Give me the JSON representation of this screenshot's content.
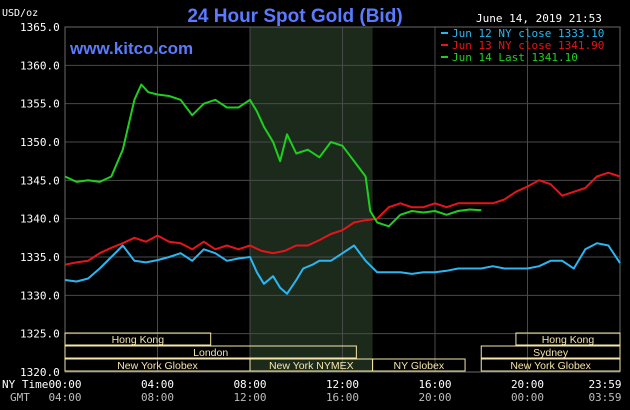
{
  "header": {
    "title": "24 Hour Spot Gold (Bid)",
    "website": "www.kitco.com",
    "date": "June 14, 2019 21:53",
    "unit": "USD/oz"
  },
  "colors": {
    "background": "#000000",
    "grid": "#4a4a4a",
    "highlight_band": "#1c2a1c",
    "title_blue": "#5a7bff",
    "session_box": "#f5e6a8",
    "jun12": "#2cb6f0",
    "jun13": "#e8141b",
    "jun14": "#1fcf1f"
  },
  "chart_data": {
    "type": "line",
    "title": "24 Hour Spot Gold (Bid)",
    "ylabel": "USD/oz",
    "ylim": [
      1320,
      1365
    ],
    "yticks": [
      "1320.0",
      "1325.0",
      "1330.0",
      "1335.0",
      "1340.0",
      "1345.0",
      "1350.0",
      "1355.0",
      "1360.0",
      "1365.0"
    ],
    "xlim": [
      0,
      24
    ],
    "xticks_ny": [
      "00:00",
      "04:00",
      "08:00",
      "12:00",
      "16:00",
      "20:00",
      "23:59"
    ],
    "xticks_gmt": [
      "04:00",
      "08:00",
      "12:00",
      "16:00",
      "20:00",
      "00:00",
      "03:59"
    ],
    "xaxis_label_ny": "NY Time",
    "xaxis_label_gmt": "GMT",
    "highlight_band": [
      8,
      13.3
    ],
    "legend_position": "top-right",
    "series": [
      {
        "name": "Jun 12 NY close 1333.10",
        "color": "#2cb6f0",
        "x": [
          0,
          0.5,
          1,
          1.5,
          2,
          2.5,
          3,
          3.5,
          4,
          4.5,
          5,
          5.5,
          6,
          6.5,
          7,
          7.5,
          8,
          8.3,
          8.6,
          9,
          9.3,
          9.6,
          10,
          10.3,
          10.7,
          11,
          11.5,
          12,
          12.5,
          13,
          13.5,
          14,
          14.5,
          15,
          15.5,
          16,
          16.5,
          17,
          17.5,
          18,
          18.5,
          19,
          19.5,
          20,
          20.5,
          21,
          21.5,
          22,
          22.5,
          23,
          23.5,
          24
        ],
        "y": [
          1332,
          1331.8,
          1332.2,
          1333.5,
          1335,
          1336.5,
          1334.5,
          1334.3,
          1334.6,
          1335,
          1335.5,
          1334.5,
          1336,
          1335.5,
          1334.5,
          1334.8,
          1335,
          1333,
          1331.5,
          1332.5,
          1331,
          1330.2,
          1332,
          1333.5,
          1334,
          1334.5,
          1334.5,
          1335.5,
          1336.5,
          1334.5,
          1333,
          1333,
          1333,
          1332.8,
          1333,
          1333,
          1333.2,
          1333.5,
          1333.5,
          1333.5,
          1333.8,
          1333.5,
          1333.5,
          1333.5,
          1333.8,
          1334.5,
          1334.5,
          1333.5,
          1336,
          1336.8,
          1336.5,
          1334.2
        ]
      },
      {
        "name": "Jun 13 NY close 1341.90",
        "color": "#e8141b",
        "x": [
          0,
          0.5,
          1,
          1.5,
          2,
          2.5,
          3,
          3.5,
          4,
          4.5,
          5,
          5.5,
          6,
          6.5,
          7,
          7.5,
          8,
          8.5,
          9,
          9.5,
          10,
          10.5,
          11,
          11.5,
          12,
          12.5,
          13,
          13.5,
          14,
          14.5,
          15,
          15.5,
          16,
          16.5,
          17,
          17.5,
          18,
          18.5,
          19,
          19.5,
          20,
          20.5,
          21,
          21.5,
          22,
          22.5,
          23,
          23.5,
          24
        ],
        "y": [
          1334,
          1334.3,
          1334.5,
          1335.5,
          1336.2,
          1336.8,
          1337.5,
          1337,
          1337.8,
          1337,
          1336.8,
          1336,
          1337,
          1336,
          1336.5,
          1336,
          1336.5,
          1335.8,
          1335.5,
          1335.8,
          1336.5,
          1336.5,
          1337.2,
          1338,
          1338.5,
          1339.5,
          1339.8,
          1340,
          1341.5,
          1342,
          1341.5,
          1341.5,
          1342,
          1341.5,
          1342,
          1342,
          1342,
          1342,
          1342.5,
          1343.5,
          1344.2,
          1345,
          1344.5,
          1343,
          1343.5,
          1344,
          1345.5,
          1346,
          1345.5
        ]
      },
      {
        "name": "Jun 14 Last 1341.10",
        "color": "#1fcf1f",
        "x": [
          0,
          0.5,
          1,
          1.5,
          2,
          2.5,
          3,
          3.3,
          3.6,
          4,
          4.5,
          5,
          5.5,
          6,
          6.5,
          7,
          7.5,
          8,
          8.3,
          8.6,
          9,
          9.3,
          9.6,
          10,
          10.5,
          11,
          11.5,
          12,
          12.5,
          13,
          13.2,
          13.5,
          14,
          14.5,
          15,
          15.5,
          16,
          16.5,
          17,
          17.5,
          18
        ],
        "y": [
          1345.5,
          1344.8,
          1345,
          1344.8,
          1345.5,
          1349,
          1355.5,
          1357.5,
          1356.5,
          1356.2,
          1356,
          1355.5,
          1353.5,
          1355,
          1355.5,
          1354.5,
          1354.5,
          1355.5,
          1354,
          1352,
          1350,
          1347.5,
          1351,
          1348.5,
          1349,
          1348,
          1350,
          1349.5,
          1347.5,
          1345.5,
          1341,
          1339.5,
          1339,
          1340.5,
          1341,
          1340.8,
          1341,
          1340.5,
          1341,
          1341.2,
          1341.1
        ]
      }
    ]
  },
  "sessions": [
    {
      "label": "Hong Kong",
      "start": 0,
      "end": 6.3
    },
    {
      "label": "London",
      "start": 0,
      "end": 12.6
    },
    {
      "label": "New York Globex",
      "start": 0,
      "end": 8
    },
    {
      "label": "New York NYMEX",
      "start": 8,
      "end": 13.3
    },
    {
      "label": "NY Globex",
      "start": 13.3,
      "end": 17.3
    },
    {
      "label": "Hong Kong",
      "start": 19.5,
      "end": 24
    },
    {
      "label": "Sydney",
      "start": 18,
      "end": 24
    },
    {
      "label": "New York Globex",
      "start": 18,
      "end": 24
    }
  ]
}
